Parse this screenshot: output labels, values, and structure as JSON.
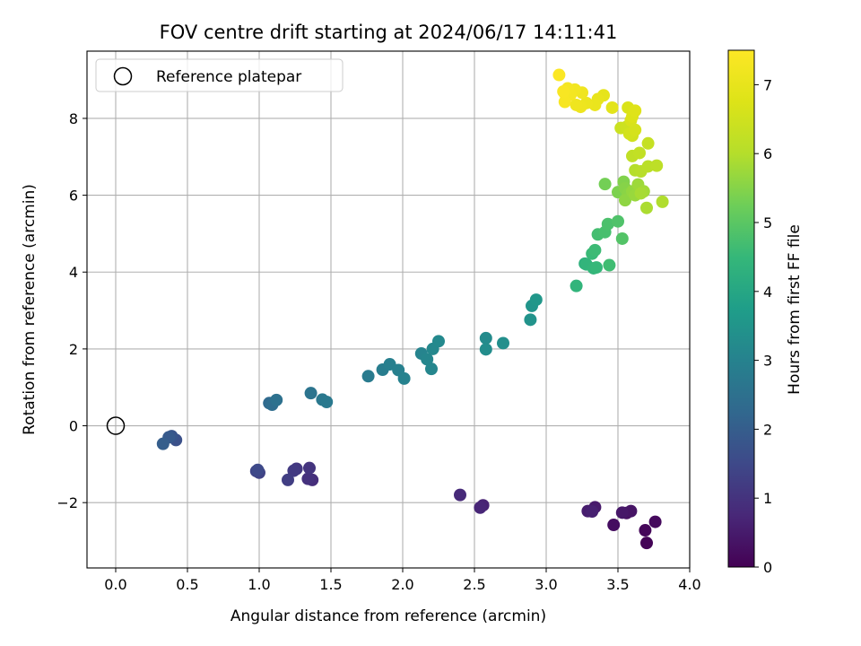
{
  "chart_data": {
    "type": "scatter",
    "title": "FOV centre drift starting at 2024/06/17 14:11:41",
    "xlabel": "Angular distance from reference (arcmin)",
    "ylabel": "Rotation from reference (arcmin)",
    "xlim": [
      -0.2,
      4.0
    ],
    "ylim": [
      -3.7,
      9.75
    ],
    "xticks": [
      0.0,
      0.5,
      1.0,
      1.5,
      2.0,
      2.5,
      3.0,
      3.5,
      4.0
    ],
    "xtick_labels": [
      "0.0",
      "0.5",
      "1.0",
      "1.5",
      "2.0",
      "2.5",
      "3.0",
      "3.5",
      "4.0"
    ],
    "yticks": [
      -2,
      0,
      2,
      4,
      6,
      8
    ],
    "ytick_labels": [
      "−2",
      "0",
      "2",
      "4",
      "6",
      "8"
    ],
    "grid": true,
    "legend": {
      "position": "top-left",
      "entries": [
        "Reference platepar"
      ]
    },
    "reference_point": {
      "x": 0.0,
      "y": 0.0,
      "label": "Reference platepar"
    },
    "colorbar": {
      "label": "Hours from first FF file",
      "range": [
        0,
        7.5
      ],
      "ticks": [
        0,
        1,
        2,
        3,
        4,
        5,
        6,
        7
      ],
      "tick_labels": [
        "0",
        "1",
        "2",
        "3",
        "4",
        "5",
        "6",
        "7"
      ],
      "colormap": "viridis"
    },
    "points": [
      {
        "x": 3.7,
        "y": -3.05,
        "h": 0.06
      },
      {
        "x": 3.69,
        "y": -2.72,
        "h": 0.12
      },
      {
        "x": 3.76,
        "y": -2.5,
        "h": 0.18
      },
      {
        "x": 3.47,
        "y": -2.58,
        "h": 0.24
      },
      {
        "x": 3.56,
        "y": -2.27,
        "h": 0.3
      },
      {
        "x": 3.59,
        "y": -2.22,
        "h": 0.36
      },
      {
        "x": 3.53,
        "y": -2.26,
        "h": 0.42
      },
      {
        "x": 3.34,
        "y": -2.12,
        "h": 0.48
      },
      {
        "x": 3.29,
        "y": -2.22,
        "h": 0.54
      },
      {
        "x": 3.32,
        "y": -2.23,
        "h": 0.6
      },
      {
        "x": 2.56,
        "y": -2.07,
        "h": 0.66
      },
      {
        "x": 2.54,
        "y": -2.13,
        "h": 0.72
      },
      {
        "x": 2.4,
        "y": -1.8,
        "h": 0.8
      },
      {
        "x": 1.37,
        "y": -1.41,
        "h": 0.88
      },
      {
        "x": 1.34,
        "y": -1.38,
        "h": 0.95
      },
      {
        "x": 1.35,
        "y": -1.1,
        "h": 1.02
      },
      {
        "x": 1.26,
        "y": -1.12,
        "h": 1.1
      },
      {
        "x": 1.24,
        "y": -1.17,
        "h": 1.17
      },
      {
        "x": 1.2,
        "y": -1.41,
        "h": 1.25
      },
      {
        "x": 1.0,
        "y": -1.22,
        "h": 1.33
      },
      {
        "x": 0.98,
        "y": -1.18,
        "h": 1.42
      },
      {
        "x": 0.99,
        "y": -1.15,
        "h": 1.5
      },
      {
        "x": 0.42,
        "y": -0.37,
        "h": 1.7
      },
      {
        "x": 0.39,
        "y": -0.27,
        "h": 1.8
      },
      {
        "x": 0.37,
        "y": -0.3,
        "h": 1.9
      },
      {
        "x": 0.33,
        "y": -0.47,
        "h": 2.0
      },
      {
        "x": 1.07,
        "y": 0.59,
        "h": 2.3
      },
      {
        "x": 1.09,
        "y": 0.55,
        "h": 2.4
      },
      {
        "x": 1.12,
        "y": 0.67,
        "h": 2.5
      },
      {
        "x": 1.36,
        "y": 0.85,
        "h": 2.6
      },
      {
        "x": 1.44,
        "y": 0.68,
        "h": 2.7
      },
      {
        "x": 1.47,
        "y": 0.62,
        "h": 2.75
      },
      {
        "x": 1.76,
        "y": 1.29,
        "h": 2.8
      },
      {
        "x": 1.86,
        "y": 1.46,
        "h": 2.85
      },
      {
        "x": 1.91,
        "y": 1.6,
        "h": 2.9
      },
      {
        "x": 1.97,
        "y": 1.45,
        "h": 2.95
      },
      {
        "x": 2.01,
        "y": 1.23,
        "h": 3.0
      },
      {
        "x": 2.13,
        "y": 1.88,
        "h": 3.05
      },
      {
        "x": 2.17,
        "y": 1.73,
        "h": 3.1
      },
      {
        "x": 2.2,
        "y": 1.48,
        "h": 3.1
      },
      {
        "x": 2.21,
        "y": 2.0,
        "h": 3.15
      },
      {
        "x": 2.25,
        "y": 2.2,
        "h": 3.2
      },
      {
        "x": 2.58,
        "y": 2.28,
        "h": 3.25
      },
      {
        "x": 2.58,
        "y": 1.99,
        "h": 3.3
      },
      {
        "x": 2.7,
        "y": 2.15,
        "h": 3.35
      },
      {
        "x": 2.89,
        "y": 2.76,
        "h": 3.45
      },
      {
        "x": 2.9,
        "y": 3.12,
        "h": 3.5
      },
      {
        "x": 2.93,
        "y": 3.28,
        "h": 3.55
      },
      {
        "x": 3.21,
        "y": 3.64,
        "h": 4.4
      },
      {
        "x": 3.27,
        "y": 4.22,
        "h": 4.3
      },
      {
        "x": 3.28,
        "y": 4.2,
        "h": 4.4
      },
      {
        "x": 3.33,
        "y": 4.1,
        "h": 4.45
      },
      {
        "x": 3.35,
        "y": 4.12,
        "h": 4.5
      },
      {
        "x": 3.32,
        "y": 4.48,
        "h": 4.55
      },
      {
        "x": 3.34,
        "y": 4.57,
        "h": 4.6
      },
      {
        "x": 3.44,
        "y": 4.18,
        "h": 4.65
      },
      {
        "x": 3.36,
        "y": 4.98,
        "h": 4.7
      },
      {
        "x": 3.41,
        "y": 5.04,
        "h": 4.75
      },
      {
        "x": 3.43,
        "y": 5.25,
        "h": 4.8
      },
      {
        "x": 3.5,
        "y": 5.32,
        "h": 4.85
      },
      {
        "x": 3.53,
        "y": 4.87,
        "h": 4.9
      },
      {
        "x": 3.41,
        "y": 6.29,
        "h": 5.3
      },
      {
        "x": 3.5,
        "y": 6.08,
        "h": 5.4
      },
      {
        "x": 3.54,
        "y": 6.35,
        "h": 5.45
      },
      {
        "x": 3.55,
        "y": 6.18,
        "h": 5.5
      },
      {
        "x": 3.57,
        "y": 6.03,
        "h": 5.55
      },
      {
        "x": 3.55,
        "y": 5.87,
        "h": 5.6
      },
      {
        "x": 3.6,
        "y": 6.1,
        "h": 5.65
      },
      {
        "x": 3.62,
        "y": 6.0,
        "h": 5.7
      },
      {
        "x": 3.64,
        "y": 6.28,
        "h": 5.75
      },
      {
        "x": 3.68,
        "y": 6.1,
        "h": 5.8
      },
      {
        "x": 3.66,
        "y": 6.05,
        "h": 5.85
      },
      {
        "x": 3.7,
        "y": 5.67,
        "h": 5.9
      },
      {
        "x": 3.81,
        "y": 5.83,
        "h": 5.95
      },
      {
        "x": 3.62,
        "y": 6.65,
        "h": 6.0
      },
      {
        "x": 3.66,
        "y": 6.62,
        "h": 6.05
      },
      {
        "x": 3.71,
        "y": 6.75,
        "h": 6.1
      },
      {
        "x": 3.77,
        "y": 6.77,
        "h": 6.15
      },
      {
        "x": 3.6,
        "y": 7.02,
        "h": 6.2
      },
      {
        "x": 3.65,
        "y": 7.1,
        "h": 6.25
      },
      {
        "x": 3.71,
        "y": 7.35,
        "h": 6.3
      },
      {
        "x": 3.52,
        "y": 7.75,
        "h": 6.4
      },
      {
        "x": 3.56,
        "y": 7.78,
        "h": 6.45
      },
      {
        "x": 3.6,
        "y": 7.55,
        "h": 6.5
      },
      {
        "x": 3.58,
        "y": 7.6,
        "h": 6.55
      },
      {
        "x": 3.62,
        "y": 7.7,
        "h": 6.6
      },
      {
        "x": 3.59,
        "y": 7.95,
        "h": 6.65
      },
      {
        "x": 3.57,
        "y": 8.28,
        "h": 6.7
      },
      {
        "x": 3.6,
        "y": 8.05,
        "h": 6.75
      },
      {
        "x": 3.62,
        "y": 8.2,
        "h": 6.8
      },
      {
        "x": 3.46,
        "y": 8.28,
        "h": 6.9
      },
      {
        "x": 3.4,
        "y": 8.6,
        "h": 6.95
      },
      {
        "x": 3.36,
        "y": 8.5,
        "h": 7.0
      },
      {
        "x": 3.34,
        "y": 8.35,
        "h": 7.05
      },
      {
        "x": 3.28,
        "y": 8.4,
        "h": 7.1
      },
      {
        "x": 3.24,
        "y": 8.3,
        "h": 7.15
      },
      {
        "x": 3.21,
        "y": 8.35,
        "h": 7.18
      },
      {
        "x": 3.25,
        "y": 8.67,
        "h": 7.2
      },
      {
        "x": 3.2,
        "y": 8.75,
        "h": 7.25
      },
      {
        "x": 3.17,
        "y": 8.62,
        "h": 7.28
      },
      {
        "x": 3.15,
        "y": 8.78,
        "h": 7.3
      },
      {
        "x": 3.13,
        "y": 8.65,
        "h": 7.32
      },
      {
        "x": 3.13,
        "y": 8.43,
        "h": 7.35
      },
      {
        "x": 3.12,
        "y": 8.7,
        "h": 7.38
      },
      {
        "x": 3.09,
        "y": 9.13,
        "h": 7.45
      }
    ]
  }
}
